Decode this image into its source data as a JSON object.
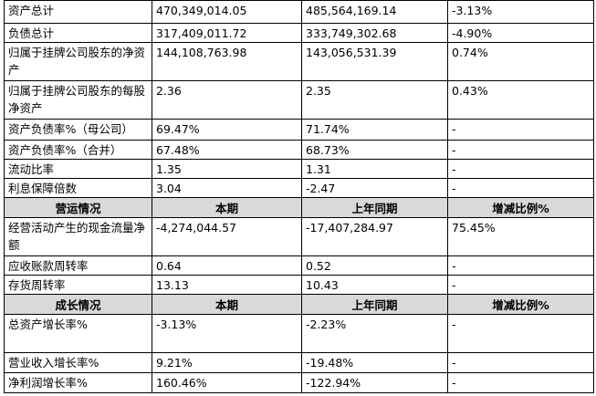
{
  "table": {
    "groups": [
      {
        "rows": [
          [
            "资产总计",
            "470,349,014.05",
            "485,564,169.14",
            "-3.13%"
          ],
          [
            "负债总计",
            "317,409,011.72",
            "333,749,302.68",
            "-4.90%"
          ],
          [
            "归属于挂牌公司股东的净资产",
            "144,108,763.98",
            "143,056,531.39",
            "0.74%"
          ],
          [
            "归属于挂牌公司股东的每股净资产",
            "2.36",
            "2.35",
            "0.43%"
          ],
          [
            "资产负债率%（母公司）",
            "69.47%",
            "71.74%",
            "-"
          ],
          [
            "资产负债率%（合并）",
            "67.48%",
            "68.73%",
            "-"
          ],
          [
            "流动比率",
            "1.35",
            "1.31",
            "-"
          ],
          [
            "利息保障倍数",
            "3.04",
            "-2.47",
            "-"
          ]
        ]
      },
      {
        "header": [
          "营运情况",
          "本期",
          "上年同期",
          "增减比例%"
        ],
        "rows": [
          [
            "经营活动产生的现金流量净额",
            "-4,274,044.57",
            "-17,407,284.97",
            "75.45%"
          ],
          [
            "应收账款周转率",
            "0.64",
            "0.52",
            "-"
          ],
          [
            "存货周转率",
            "13.13",
            "10.43",
            "-"
          ]
        ]
      },
      {
        "header": [
          "成长情况",
          "本期",
          "上年同期",
          "增减比例%"
        ],
        "rows": [
          [
            "总资产增长率%",
            "-3.13%",
            "-2.23%",
            "-"
          ],
          [
            "营业收入增长率%",
            "9.21%",
            "-19.48%",
            "-"
          ],
          [
            "净利润增长率%",
            "160.46%",
            "-122.94%",
            "-"
          ]
        ]
      }
    ]
  }
}
